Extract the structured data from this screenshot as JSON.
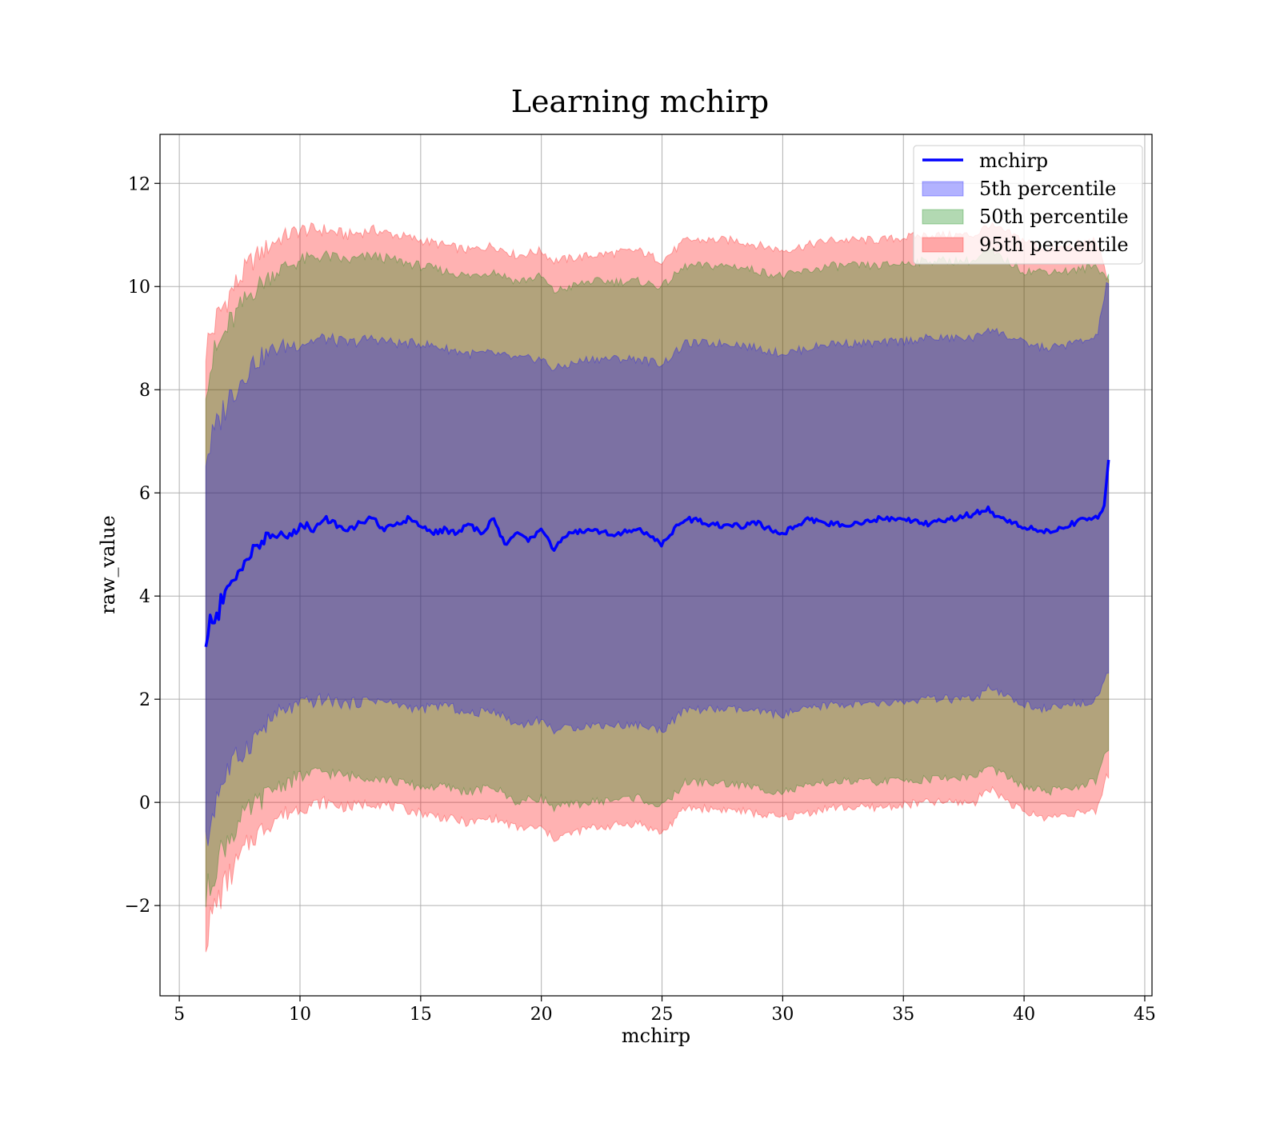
{
  "chart_data": {
    "type": "area",
    "title": "Learning mchirp",
    "xlabel": "mchirp",
    "ylabel": "raw_value",
    "xlim": [
      4.2,
      45.3
    ],
    "ylim": [
      -3.75,
      12.95
    ],
    "xticks": [
      5,
      10,
      15,
      20,
      25,
      30,
      35,
      40,
      45
    ],
    "yticks": [
      -2,
      0,
      2,
      4,
      6,
      8,
      10,
      12
    ],
    "ytick_labels": [
      "−2",
      "0",
      "2",
      "4",
      "6",
      "8",
      "10",
      "12"
    ],
    "grid": true,
    "legend_position": "top-right",
    "x_range": [
      6.1,
      43.5
    ],
    "series": [
      {
        "name": "mchirp",
        "kind": "line",
        "color": "#0000ff",
        "x": [
          6.1,
          6.3,
          6.6,
          7.0,
          7.5,
          8.0,
          8.5,
          9.0,
          9.5,
          10.0,
          10.5,
          11.0,
          11.5,
          12.0,
          12.5,
          13.0,
          13.5,
          14.0,
          14.5,
          15.0,
          15.5,
          16.0,
          16.5,
          17.0,
          17.5,
          18.0,
          18.5,
          19.0,
          19.5,
          20.0,
          20.5,
          21.0,
          22.0,
          23.0,
          24.0,
          25.0,
          25.5,
          26.0,
          27.0,
          28.0,
          29.0,
          30.0,
          31.0,
          32.0,
          33.0,
          34.0,
          35.0,
          36.0,
          37.0,
          38.0,
          38.5,
          39.0,
          40.0,
          41.0,
          42.0,
          42.5,
          43.0,
          43.3,
          43.5
        ],
        "values": [
          3.0,
          3.5,
          3.7,
          4.1,
          4.5,
          4.9,
          5.1,
          5.2,
          5.1,
          5.4,
          5.3,
          5.5,
          5.4,
          5.3,
          5.4,
          5.5,
          5.3,
          5.4,
          5.5,
          5.4,
          5.2,
          5.3,
          5.2,
          5.4,
          5.2,
          5.5,
          5.0,
          5.2,
          5.1,
          5.3,
          4.9,
          5.2,
          5.3,
          5.2,
          5.3,
          5.0,
          5.3,
          5.5,
          5.4,
          5.35,
          5.4,
          5.2,
          5.5,
          5.4,
          5.4,
          5.5,
          5.5,
          5.4,
          5.5,
          5.6,
          5.7,
          5.5,
          5.35,
          5.25,
          5.4,
          5.5,
          5.5,
          5.7,
          6.65
        ]
      },
      {
        "name": "5th percentile",
        "kind": "band",
        "color": "#0000ff",
        "opacity": 0.3,
        "x": [
          6.1,
          6.5,
          7.0,
          8.0,
          9.0,
          10.0,
          11.0,
          12.0,
          13.0,
          14.0,
          15.0,
          16.0,
          17.0,
          18.0,
          19.0,
          20.0,
          20.5,
          22.0,
          24.0,
          25.0,
          26.0,
          28.0,
          30.0,
          32.0,
          34.0,
          36.0,
          38.0,
          38.5,
          40.0,
          41.0,
          42.0,
          43.0,
          43.4
        ],
        "lower": [
          -0.9,
          0.1,
          0.6,
          1.2,
          1.7,
          1.9,
          2.0,
          1.9,
          2.0,
          1.9,
          1.8,
          1.9,
          1.7,
          1.8,
          1.5,
          1.6,
          1.4,
          1.5,
          1.5,
          1.4,
          1.8,
          1.8,
          1.7,
          1.9,
          1.9,
          2.0,
          2.0,
          2.2,
          1.9,
          1.8,
          1.9,
          2.0,
          2.5
        ],
        "upper": [
          6.7,
          7.2,
          7.8,
          8.5,
          8.8,
          8.9,
          9.0,
          8.9,
          9.0,
          8.9,
          8.9,
          8.8,
          8.7,
          8.7,
          8.6,
          8.6,
          8.4,
          8.6,
          8.6,
          8.5,
          8.9,
          8.9,
          8.7,
          8.9,
          8.9,
          9.0,
          9.0,
          9.2,
          8.9,
          8.8,
          8.9,
          9.0,
          10.0
        ]
      },
      {
        "name": "50th percentile",
        "kind": "band",
        "color": "#008000",
        "opacity": 0.3,
        "x": [
          6.1,
          6.5,
          7.0,
          8.0,
          9.0,
          10.0,
          11.0,
          12.0,
          13.0,
          14.0,
          15.0,
          16.0,
          17.0,
          18.0,
          19.0,
          20.0,
          20.5,
          22.0,
          24.0,
          25.0,
          26.0,
          28.0,
          30.0,
          32.0,
          34.0,
          36.0,
          38.0,
          38.5,
          40.0,
          41.0,
          42.0,
          43.0,
          43.4
        ],
        "lower": [
          -1.9,
          -1.2,
          -0.7,
          -0.1,
          0.3,
          0.5,
          0.6,
          0.5,
          0.5,
          0.4,
          0.3,
          0.3,
          0.2,
          0.3,
          0.0,
          0.1,
          -0.1,
          0.0,
          0.1,
          -0.1,
          0.4,
          0.35,
          0.2,
          0.4,
          0.4,
          0.45,
          0.5,
          0.7,
          0.3,
          0.2,
          0.3,
          0.4,
          1.0
        ],
        "upper": [
          8.2,
          8.7,
          9.2,
          9.9,
          10.3,
          10.5,
          10.6,
          10.5,
          10.6,
          10.5,
          10.4,
          10.3,
          10.2,
          10.3,
          10.1,
          10.2,
          9.9,
          10.1,
          10.1,
          10.0,
          10.4,
          10.4,
          10.2,
          10.4,
          10.4,
          10.5,
          10.5,
          10.7,
          10.3,
          10.3,
          10.3,
          10.4,
          10.2
        ]
      },
      {
        "name": "95th percentile",
        "kind": "band",
        "color": "#ff0000",
        "opacity": 0.3,
        "x": [
          6.1,
          6.5,
          7.0,
          8.0,
          9.0,
          10.0,
          11.0,
          12.0,
          13.0,
          14.0,
          15.0,
          16.0,
          17.0,
          18.0,
          19.0,
          20.0,
          20.5,
          22.0,
          24.0,
          25.0,
          26.0,
          28.0,
          30.0,
          32.0,
          34.0,
          36.0,
          38.0,
          38.5,
          40.0,
          41.0,
          42.0,
          43.0,
          43.4
        ],
        "lower": [
          -2.6,
          -2.0,
          -1.5,
          -0.7,
          -0.3,
          -0.1,
          0.0,
          -0.1,
          0.0,
          -0.1,
          -0.2,
          -0.3,
          -0.4,
          -0.3,
          -0.5,
          -0.5,
          -0.7,
          -0.5,
          -0.4,
          -0.6,
          -0.1,
          -0.15,
          -0.3,
          -0.1,
          -0.1,
          0.0,
          0.0,
          0.3,
          -0.2,
          -0.3,
          -0.2,
          -0.2,
          0.5
        ],
        "upper": [
          8.8,
          9.3,
          9.8,
          10.5,
          10.9,
          11.1,
          11.1,
          11.0,
          11.1,
          11.0,
          10.9,
          10.8,
          10.7,
          10.8,
          10.6,
          10.7,
          10.5,
          10.6,
          10.7,
          10.5,
          10.9,
          10.9,
          10.7,
          10.9,
          10.9,
          11.0,
          11.0,
          11.2,
          10.9,
          10.7,
          10.8,
          10.9,
          10.2
        ]
      }
    ]
  }
}
